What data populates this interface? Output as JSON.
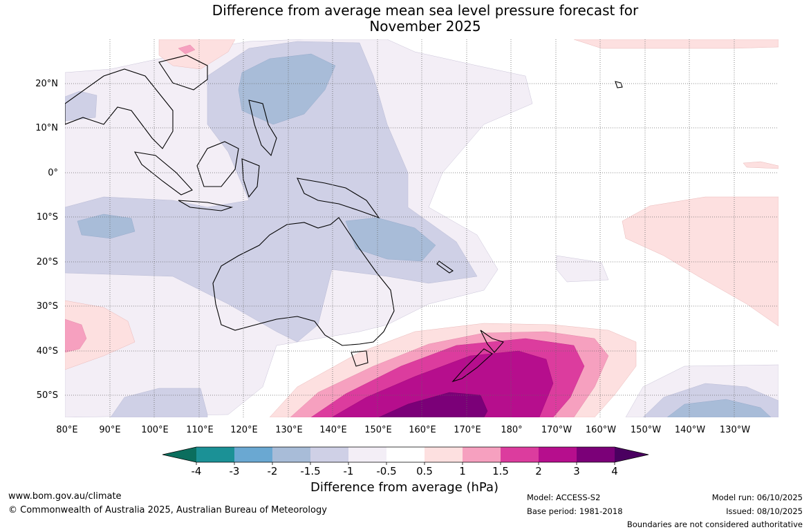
{
  "title": {
    "line1": "Difference from average mean sea level pressure forecast for",
    "line2": "November 2025"
  },
  "axes": {
    "lon_labels": [
      "80°E",
      "90°E",
      "100°E",
      "110°E",
      "120°E",
      "130°E",
      "140°E",
      "150°E",
      "160°E",
      "170°E",
      "180°",
      "170°W",
      "160°W",
      "150°W",
      "140°W",
      "130°W"
    ],
    "lat_labels": [
      "20°N",
      "10°N",
      "0°",
      "10°S",
      "20°S",
      "30°S",
      "40°S",
      "50°S"
    ]
  },
  "colorbar": {
    "title": "Difference from average (hPa)",
    "tick_labels": [
      "-4",
      "-3",
      "-2",
      "-1.5",
      "-1",
      "-0.5",
      "0.5",
      "1",
      "1.5",
      "2",
      "3",
      "4"
    ],
    "colors": {
      "c_neg4": "#0b6e5e",
      "c_neg3": "#1b9196",
      "c_neg2": "#6aa8d2",
      "c_neg15": "#a8bcd8",
      "c_neg1": "#cfd0e6",
      "c_neg05": "#f3eef6",
      "c_zero": "#ffffff",
      "c_pos05": "#fde0e0",
      "c_pos1": "#f6a0bf",
      "c_pos15": "#dc3c9e",
      "c_pos2": "#b60e8d",
      "c_pos3": "#7b0078",
      "c_pos4": "#4a0060"
    }
  },
  "footer": {
    "website": "www.bom.gov.au/climate",
    "copyright": "© Commonwealth of Australia 2025, Australian Bureau of Meteorology",
    "model": "Model: ACCESS-S2",
    "base_period": "Base period: 1981-2018",
    "model_run": "Model run: 06/10/2025",
    "issued": "Issued: 08/10/2025",
    "disclaimer": "Boundaries are not considered authoritative"
  }
}
